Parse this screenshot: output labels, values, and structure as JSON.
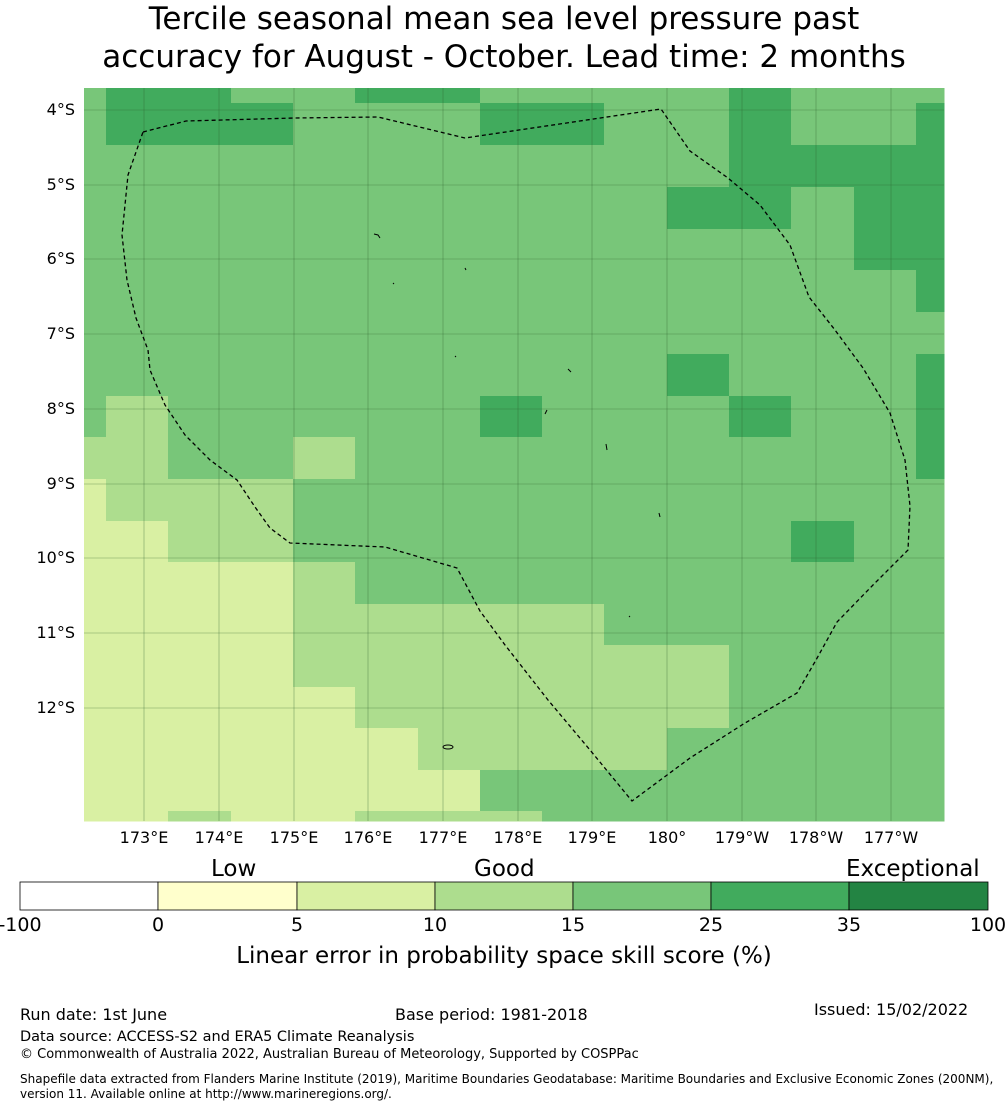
{
  "title": {
    "line1": "Tercile seasonal mean sea level pressure past",
    "line2": "accuracy for August - October. Lead time: 2 months"
  },
  "map": {
    "lat_labels": [
      "4°S",
      "5°S",
      "6°S",
      "7°S",
      "8°S",
      "9°S",
      "10°S",
      "11°S",
      "12°S"
    ],
    "lon_labels": [
      "173°E",
      "174°E",
      "175°E",
      "176°E",
      "177°E",
      "178°E",
      "179°E",
      "180°",
      "179°W",
      "178°W",
      "177°W"
    ],
    "colors": {
      "c0_5": "#ffffcc",
      "c5_10": "#d9f0a3",
      "c10_15": "#addd8e",
      "c15_25": "#78c679",
      "c25_35": "#41ab5d",
      "c35_100": "#238443",
      "below0": "#ffffff"
    }
  },
  "colorbar": {
    "categories": [
      "Low",
      "Good",
      "Exceptional"
    ],
    "ticks": [
      "-100",
      "0",
      "5",
      "10",
      "15",
      "25",
      "35",
      "100"
    ],
    "title": "Linear error in probability space skill score (%)"
  },
  "footer": {
    "run_date": "Run date: 1st June",
    "base_period": "Base period: 1981-2018",
    "issued": "Issued: 15/02/2022",
    "data_source": "Data source: ACCESS-S2 and ERA5 Climate Reanalysis",
    "copyright": "© Commonwealth of Australia 2022, Australian Bureau of Meteorology, Supported by COSPPac",
    "shapefile": "Shapefile data extracted from Flanders Marine Institute (2019), Maritime Boundaries Geodatabase: Maritime Boundaries and Exclusive Economic Zones (200NM), version 11. Available online at http://www.marineregions.org/."
  }
}
